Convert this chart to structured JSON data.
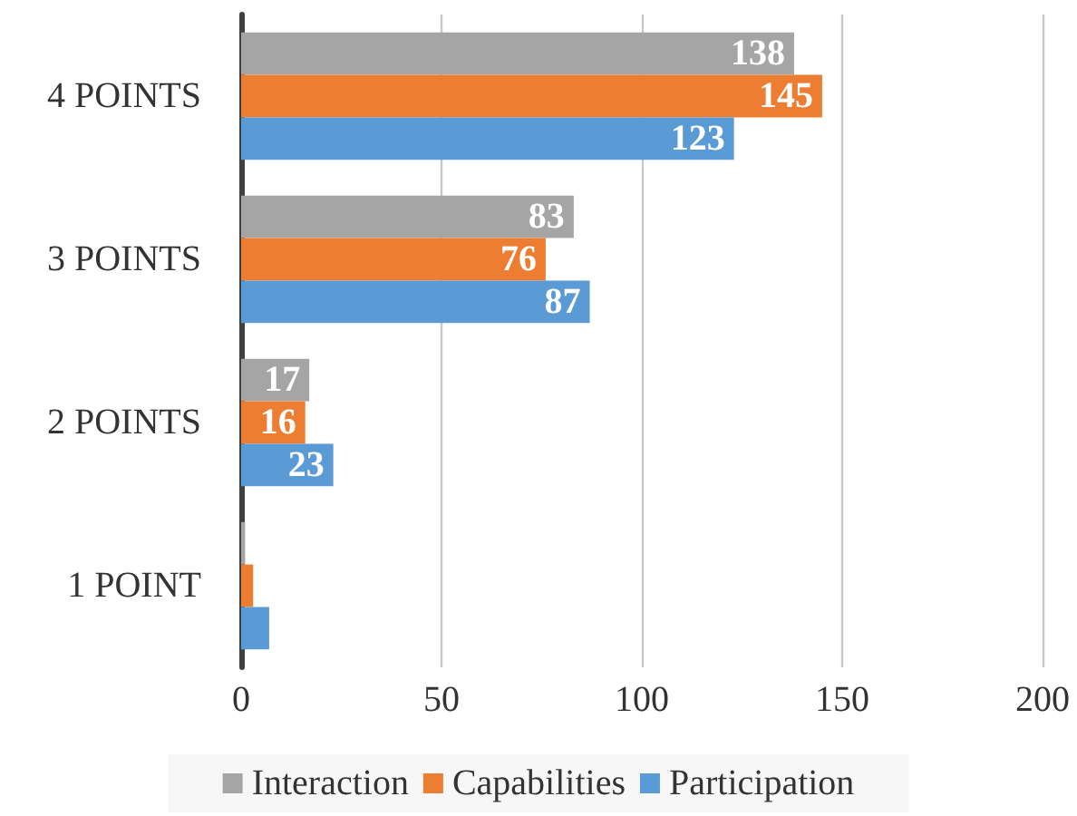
{
  "chart_data": {
    "type": "bar",
    "orientation": "horizontal",
    "categories": [
      "4 POINTS",
      "3 POINTS",
      "2 POINTS",
      "1 POINT"
    ],
    "series": [
      {
        "name": "Interaction",
        "color": "#a5a5a5",
        "values": [
          138,
          83,
          17,
          1
        ],
        "value_labels": [
          "138",
          "83",
          "17",
          null
        ]
      },
      {
        "name": "Capabilities",
        "color": "#ed7d31",
        "values": [
          145,
          76,
          16,
          3
        ],
        "value_labels": [
          "145",
          "76",
          "16",
          null
        ]
      },
      {
        "name": "Participation",
        "color": "#5b9bd5",
        "values": [
          123,
          87,
          23,
          7
        ],
        "value_labels": [
          "123",
          "87",
          "23",
          null
        ]
      }
    ],
    "xlim": [
      0,
      200
    ],
    "xticks": [
      0,
      50,
      100,
      150,
      200
    ],
    "grid": "x",
    "legend": "bottom"
  }
}
